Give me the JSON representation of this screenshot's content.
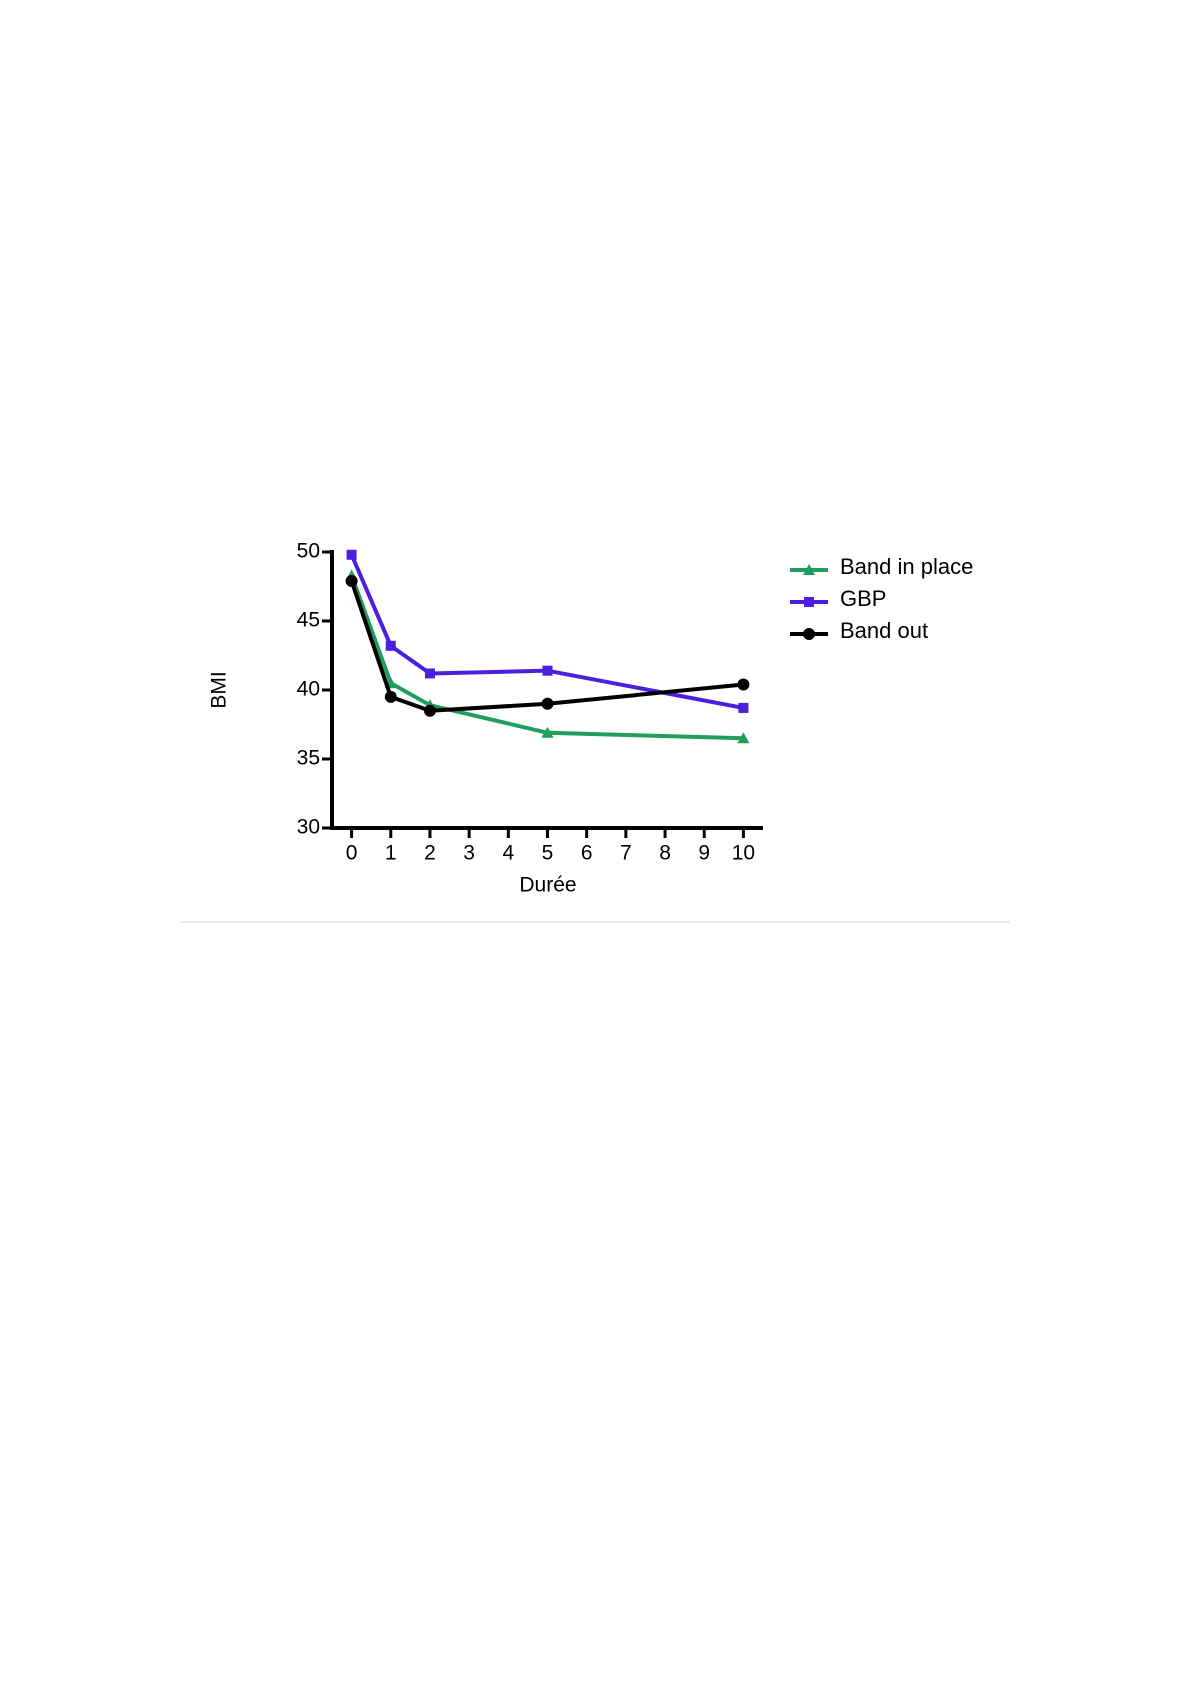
{
  "chart_data": {
    "type": "line",
    "x_label": "Durée",
    "y_label": "BMI",
    "x": [
      0,
      1,
      2,
      5,
      10
    ],
    "series": [
      {
        "name": "Band in place",
        "color": "#1f9e5c",
        "marker": "triangle",
        "values": [
          48.3,
          40.5,
          38.9,
          36.9,
          36.5
        ]
      },
      {
        "name": "GBP",
        "color": "#4a1fe0",
        "marker": "square",
        "values": [
          49.8,
          43.2,
          41.2,
          41.4,
          38.7
        ]
      },
      {
        "name": "Band out",
        "color": "#000000",
        "marker": "circle",
        "values": [
          47.9,
          39.5,
          38.5,
          39.0,
          40.4
        ]
      }
    ],
    "xlim": [
      -0.5,
      10.5
    ],
    "xticks": [
      0,
      1,
      2,
      3,
      4,
      5,
      6,
      7,
      8,
      9,
      10
    ],
    "ylim": [
      30,
      50
    ],
    "yticks": [
      30,
      35,
      40,
      45,
      50
    ],
    "grid": false,
    "legend": "right"
  }
}
